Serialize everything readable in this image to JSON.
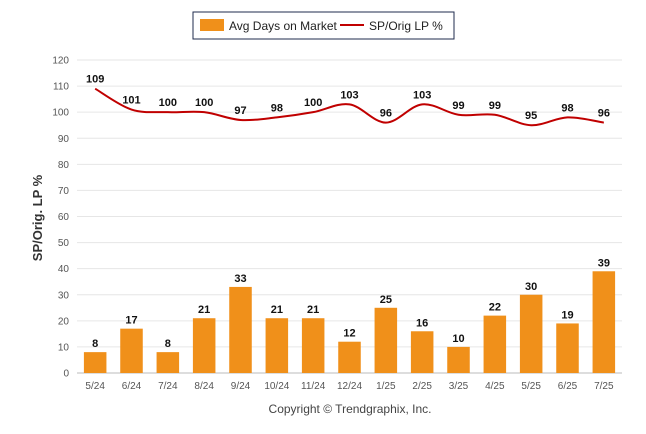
{
  "chart_data": {
    "type": "bar",
    "categories": [
      "5/24",
      "6/24",
      "7/24",
      "8/24",
      "9/24",
      "10/24",
      "11/24",
      "12/24",
      "1/25",
      "2/25",
      "3/25",
      "4/25",
      "5/25",
      "6/25",
      "7/25"
    ],
    "series": [
      {
        "name": "Avg Days on Market",
        "type": "bar",
        "color": "#f0901a",
        "values": [
          8,
          17,
          8,
          21,
          33,
          21,
          21,
          12,
          25,
          16,
          10,
          22,
          30,
          19,
          39
        ]
      },
      {
        "name": "SP/Orig LP %",
        "type": "line",
        "color": "#c00000",
        "values": [
          109,
          101,
          100,
          100,
          97,
          98,
          100,
          103,
          96,
          103,
          99,
          99,
          95,
          98,
          96
        ]
      }
    ],
    "ylabel": "SP/Orig. LP %",
    "ylim": [
      0,
      120
    ],
    "yticks": [
      0,
      10,
      20,
      30,
      40,
      50,
      60,
      70,
      80,
      90,
      100,
      110,
      120
    ],
    "grid": true,
    "legend_position": "top-center"
  },
  "credit": "Copyright © Trendgraphix, Inc."
}
